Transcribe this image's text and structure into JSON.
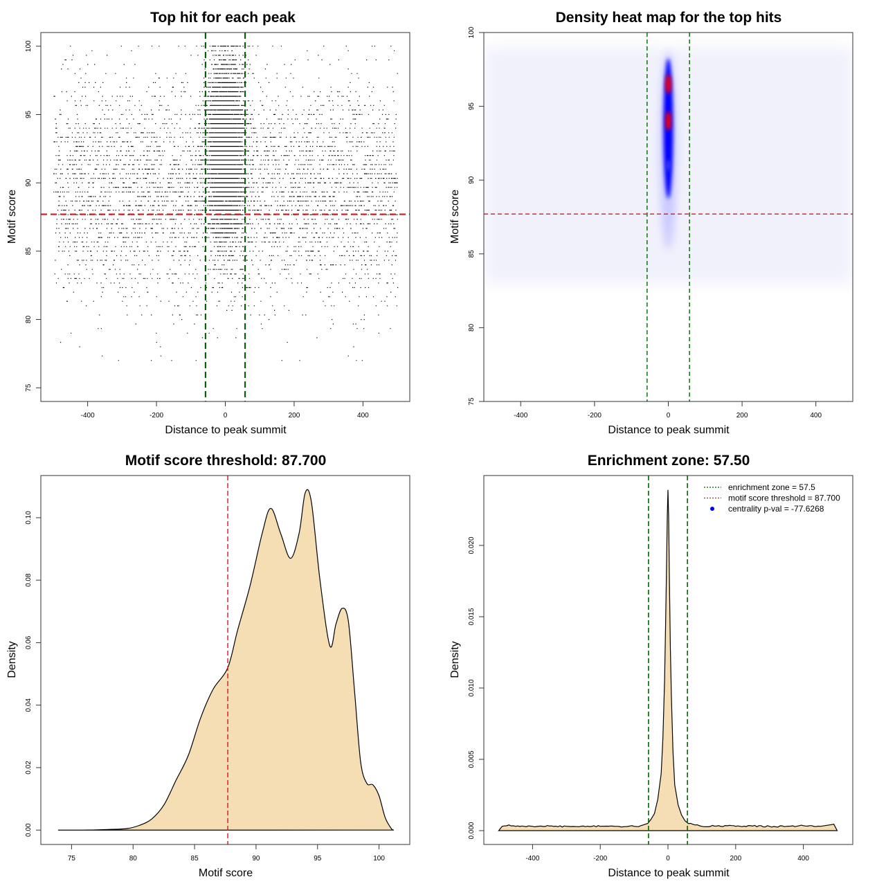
{
  "chart_data": [
    {
      "type": "scatter",
      "title": "Top hit for each peak",
      "xlabel": "Distance to peak summit",
      "ylabel": "Motif score",
      "xlim": [
        -536,
        536
      ],
      "ylim": [
        74,
        101
      ],
      "xticks": [
        -400,
        -200,
        0,
        200,
        400
      ],
      "yticks": [
        75,
        80,
        85,
        90,
        95,
        100
      ],
      "x_tick_labels": [
        "-400",
        "-200",
        "0",
        "200",
        "400"
      ],
      "y_tick_labels": [
        "75",
        "80",
        "85",
        "90",
        "95",
        "100"
      ],
      "central_peak": {
        "x_sd": 25,
        "score_mean": 92.5,
        "score_sd": 3.2
      },
      "background": {
        "x_range": [
          -500,
          500
        ],
        "score_mean": 89.5,
        "score_sd": 4.0
      },
      "lines": {
        "vertical": [
          -57.5,
          57.5
        ],
        "horizontal": 87.7
      },
      "colors": {
        "points": "#000000",
        "enrichment_zone": "#006400",
        "threshold": "#e0101e"
      }
    },
    {
      "type": "heatmap",
      "title": "Density heat map for the top hits",
      "xlabel": "Distance to peak summit",
      "ylabel": "Motif score",
      "xlim": [
        -500,
        500
      ],
      "ylim": [
        75,
        100
      ],
      "xticks": [
        -400,
        -200,
        0,
        200,
        400
      ],
      "yticks": [
        75,
        80,
        85,
        90,
        95,
        100
      ],
      "x_tick_labels": [
        "-400",
        "-200",
        "0",
        "200",
        "400"
      ],
      "y_tick_labels": [
        "75",
        "80",
        "85",
        "90",
        "95",
        "100"
      ],
      "hotspots": [
        {
          "x": 0,
          "score": 96.5,
          "level": "high"
        },
        {
          "x": 0,
          "score": 94,
          "level": "high"
        },
        {
          "x": 0,
          "score": 91,
          "level": "medium"
        }
      ],
      "lines": {
        "vertical": [
          -57.5,
          57.5
        ],
        "horizontal": 87.7
      },
      "colors": {
        "low": "#ffffff",
        "mid": "#0000ff",
        "high": "#ff0000",
        "enrichment_zone": "#006400",
        "threshold": "#e0101e"
      }
    },
    {
      "type": "area",
      "title": "Motif score threshold: 87.700",
      "xlabel": "Motif score",
      "ylabel": "Density",
      "xlim": [
        72.5,
        102.5
      ],
      "ylim": [
        -0.0046,
        0.1135
      ],
      "xticks": [
        75,
        80,
        85,
        90,
        95,
        100
      ],
      "yticks": [
        0.0,
        0.02,
        0.04,
        0.06,
        0.08,
        0.1
      ],
      "x_tick_labels": [
        "75",
        "80",
        "85",
        "90",
        "95",
        "100"
      ],
      "y_tick_labels": [
        "0.00",
        "0.02",
        "0.04",
        "0.06",
        "0.08",
        "0.10"
      ],
      "x": [
        73.9,
        76,
        78,
        79.5,
        80.5,
        81.5,
        82.5,
        83.5,
        84.5,
        85.5,
        86.5,
        87.7,
        88.5,
        89.5,
        90.5,
        91.2,
        92,
        92.8,
        93.5,
        94,
        94.5,
        95.2,
        96,
        96.5,
        97,
        97.5,
        98,
        98.5,
        99,
        99.5,
        100,
        100.5,
        101,
        101.2
      ],
      "values": [
        0.0,
        0.0,
        0.0002,
        0.0005,
        0.0015,
        0.0035,
        0.008,
        0.016,
        0.024,
        0.036,
        0.045,
        0.052,
        0.064,
        0.078,
        0.095,
        0.103,
        0.095,
        0.087,
        0.095,
        0.108,
        0.105,
        0.08,
        0.059,
        0.066,
        0.071,
        0.067,
        0.045,
        0.022,
        0.015,
        0.0145,
        0.011,
        0.004,
        0.0005,
        0.0
      ],
      "threshold": 87.7,
      "colors": {
        "fill": "#f5deb3",
        "line": "#000000",
        "threshold": "#e0101e"
      }
    },
    {
      "type": "area",
      "title": "Enrichment zone: 57.50",
      "xlabel": "Distance to peak summit",
      "ylabel": "Density",
      "xlim": [
        -544,
        546
      ],
      "ylim": [
        -0.00097,
        0.0249
      ],
      "xticks": [
        -400,
        -200,
        0,
        200,
        400
      ],
      "yticks": [
        0.0,
        0.005,
        0.01,
        0.015,
        0.02
      ],
      "x_tick_labels": [
        "-400",
        "-200",
        "0",
        "200",
        "400"
      ],
      "y_tick_labels": [
        "0.000",
        "0.005",
        "0.010",
        "0.015",
        "0.020"
      ],
      "x": [
        -500,
        -490,
        -470,
        -450,
        -400,
        -350,
        -300,
        -250,
        -200,
        -150,
        -100,
        -80,
        -60,
        -50,
        -40,
        -30,
        -20,
        -15,
        -10,
        -7,
        -4,
        -2,
        0,
        2,
        4,
        7,
        10,
        15,
        20,
        30,
        40,
        50,
        60,
        80,
        100,
        150,
        200,
        250,
        300,
        350,
        400,
        450,
        490,
        500
      ],
      "values": [
        0.0,
        0.0003,
        0.0004,
        0.0003,
        0.0003,
        0.00032,
        0.0003,
        0.00032,
        0.0003,
        0.0003,
        0.0003,
        0.00035,
        0.0005,
        0.0008,
        0.0012,
        0.0022,
        0.004,
        0.0065,
        0.0105,
        0.0145,
        0.019,
        0.022,
        0.0239,
        0.022,
        0.018,
        0.013,
        0.0095,
        0.0055,
        0.0032,
        0.0018,
        0.0011,
        0.0007,
        0.0005,
        0.0004,
        0.0003,
        0.00035,
        0.0003,
        0.00032,
        0.0003,
        0.0003,
        0.00035,
        0.0003,
        0.00045,
        0.0
      ],
      "lines": {
        "vertical": [
          -57.5,
          57.5
        ]
      },
      "legend": {
        "position": "top-right",
        "entries": [
          {
            "label": "enrichment zone = 57.5",
            "color": "#006400",
            "symbol": "dotted-line"
          },
          {
            "label": "motif score threshold = 87.700",
            "color": "#e0101e",
            "symbol": "dotted-line"
          },
          {
            "label": "centrality p-val = -77.6268",
            "color": "#0000ff",
            "symbol": "dot"
          }
        ]
      },
      "colors": {
        "fill": "#f5deb3",
        "line": "#000000",
        "enrichment_zone": "#006400"
      }
    }
  ]
}
